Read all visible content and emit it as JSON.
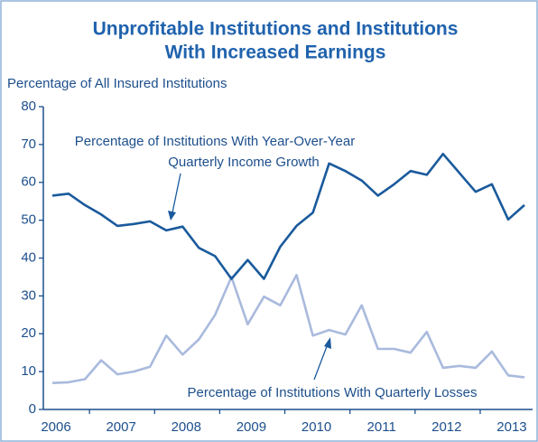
{
  "chart_data": {
    "type": "line",
    "title": [
      "Unprofitable Institutions and Institutions",
      "With Increased Earnings"
    ],
    "y_label": "Percentage of All Insured Institutions",
    "annotations": [
      [
        "Percentage of Institutions With Year-Over-Year",
        "Quarterly Income Growth"
      ],
      [
        "Percentage of Institutions With Quarterly Losses"
      ]
    ],
    "categories": [
      "2006",
      null,
      null,
      null,
      "2007",
      null,
      null,
      null,
      "2008",
      null,
      null,
      null,
      "2009",
      null,
      null,
      null,
      "2010",
      null,
      null,
      null,
      "2011",
      null,
      null,
      null,
      "2012",
      null,
      null,
      null,
      "2013",
      null
    ],
    "series": [
      {
        "name": "Percentage of Institutions With Year-Over-Year Quarterly Income Growth",
        "color": "#1a5a9c",
        "values": [
          56.5,
          57,
          54,
          51.5,
          48.5,
          49,
          49.7,
          47.3,
          48.3,
          42.7,
          40.5,
          34.5,
          39.5,
          34.5,
          43,
          48.5,
          52,
          65,
          63,
          60.5,
          56.5,
          59.5,
          63,
          62,
          67.5,
          62.5,
          57.5,
          59.5,
          50.2,
          54
        ]
      },
      {
        "name": "Percentage of Institutions With Quarterly Losses",
        "color": "#a9badd",
        "values": [
          7,
          7.2,
          8,
          13,
          9.3,
          10,
          11.3,
          19.5,
          14.5,
          18.5,
          25,
          35,
          22.5,
          29.8,
          27.5,
          35.5,
          19.5,
          21,
          19.8,
          27.5,
          16,
          16,
          15,
          20.5,
          11,
          11.5,
          11,
          15.3,
          9,
          8.5
        ]
      }
    ],
    "ylim": [
      0,
      80
    ],
    "yticks": [
      0,
      10,
      20,
      30,
      40,
      50,
      60,
      70,
      80
    ]
  }
}
